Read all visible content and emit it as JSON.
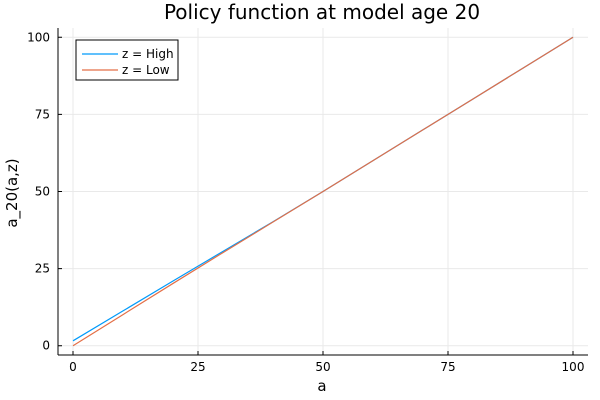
{
  "chart_data": {
    "type": "line",
    "title": "Policy function at model age 20",
    "xlabel": "a",
    "ylabel": "a_20(a,z)",
    "xlim": [
      -3,
      103
    ],
    "ylim": [
      -3,
      103
    ],
    "x_ticks": [
      0,
      25,
      50,
      75,
      100
    ],
    "y_ticks": [
      0,
      25,
      50,
      75,
      100
    ],
    "x_tick_labels": [
      "0",
      "25",
      "50",
      "75",
      "100"
    ],
    "y_tick_labels": [
      "0",
      "25",
      "50",
      "75",
      "100"
    ],
    "grid": true,
    "legend_position": "top-left",
    "series": [
      {
        "name": "z = High",
        "color": "#009AFA",
        "x": [
          0,
          10,
          20,
          30,
          40,
          50,
          60,
          70,
          80,
          90,
          100
        ],
        "y": [
          1.6,
          11.3,
          21.0,
          30.6,
          40.2,
          50.0,
          60.0,
          70.0,
          80.0,
          90.0,
          100.0
        ]
      },
      {
        "name": "z = Low",
        "color": "#E36F47",
        "x": [
          0,
          10,
          20,
          30,
          40,
          50,
          60,
          70,
          80,
          90,
          100
        ],
        "y": [
          0.0,
          10.1,
          20.2,
          30.2,
          40.1,
          50.0,
          60.0,
          70.0,
          80.0,
          90.0,
          100.0
        ]
      }
    ]
  }
}
